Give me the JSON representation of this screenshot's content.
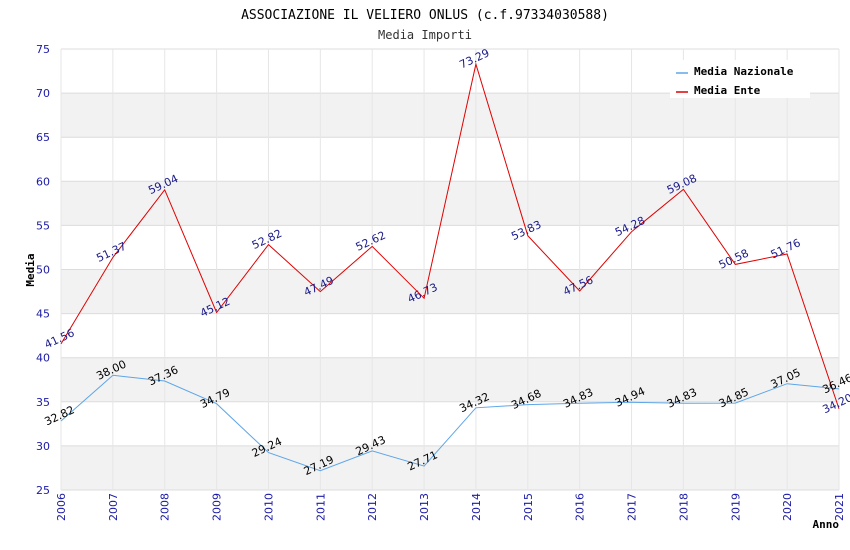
{
  "chart_data": {
    "type": "line",
    "title": "ASSOCIAZIONE IL VELIERO ONLUS (c.f.97334030588)",
    "subtitle": "Media Importi",
    "xlabel": "Anno",
    "ylabel": "Media",
    "x": [
      "2006",
      "2007",
      "2008",
      "2009",
      "2010",
      "2011",
      "2012",
      "2013",
      "2014",
      "2015",
      "2016",
      "2017",
      "2018",
      "2019",
      "2020",
      "2021"
    ],
    "ylim": [
      25,
      75
    ],
    "yticks": [
      "25",
      "30",
      "35",
      "40",
      "45",
      "50",
      "55",
      "60",
      "65",
      "70",
      "75"
    ],
    "grid": true,
    "legend_position": "top-right",
    "series": [
      {
        "name": "Media Nazionale",
        "color": "#5da5e8",
        "label_color": "#000000",
        "values": [
          32.82,
          38.0,
          37.36,
          34.79,
          29.24,
          27.19,
          29.43,
          27.71,
          34.32,
          34.68,
          34.83,
          34.94,
          34.83,
          34.85,
          37.05,
          36.46
        ],
        "labels": [
          "32.82",
          "38.00",
          "37.36",
          "34.79",
          "29.24",
          "27.19",
          "29.43",
          "27.71",
          "34.32",
          "34.68",
          "34.83",
          "34.94",
          "34.83",
          "34.85",
          "37.05",
          "36.46"
        ]
      },
      {
        "name": "Media Ente",
        "color": "#e00000",
        "label_color": "#1a1a8a",
        "values": [
          41.56,
          51.37,
          59.04,
          45.12,
          52.82,
          47.49,
          52.62,
          46.73,
          73.29,
          53.83,
          47.56,
          54.28,
          59.08,
          50.58,
          51.76,
          34.2
        ],
        "labels": [
          "41.56",
          "51.37",
          "59.04",
          "45.12",
          "52.82",
          "47.49",
          "52.62",
          "46.73",
          "73.29",
          "53.83",
          "47.56",
          "54.28",
          "59.08",
          "50.58",
          "51.76",
          "34.20"
        ]
      }
    ]
  }
}
